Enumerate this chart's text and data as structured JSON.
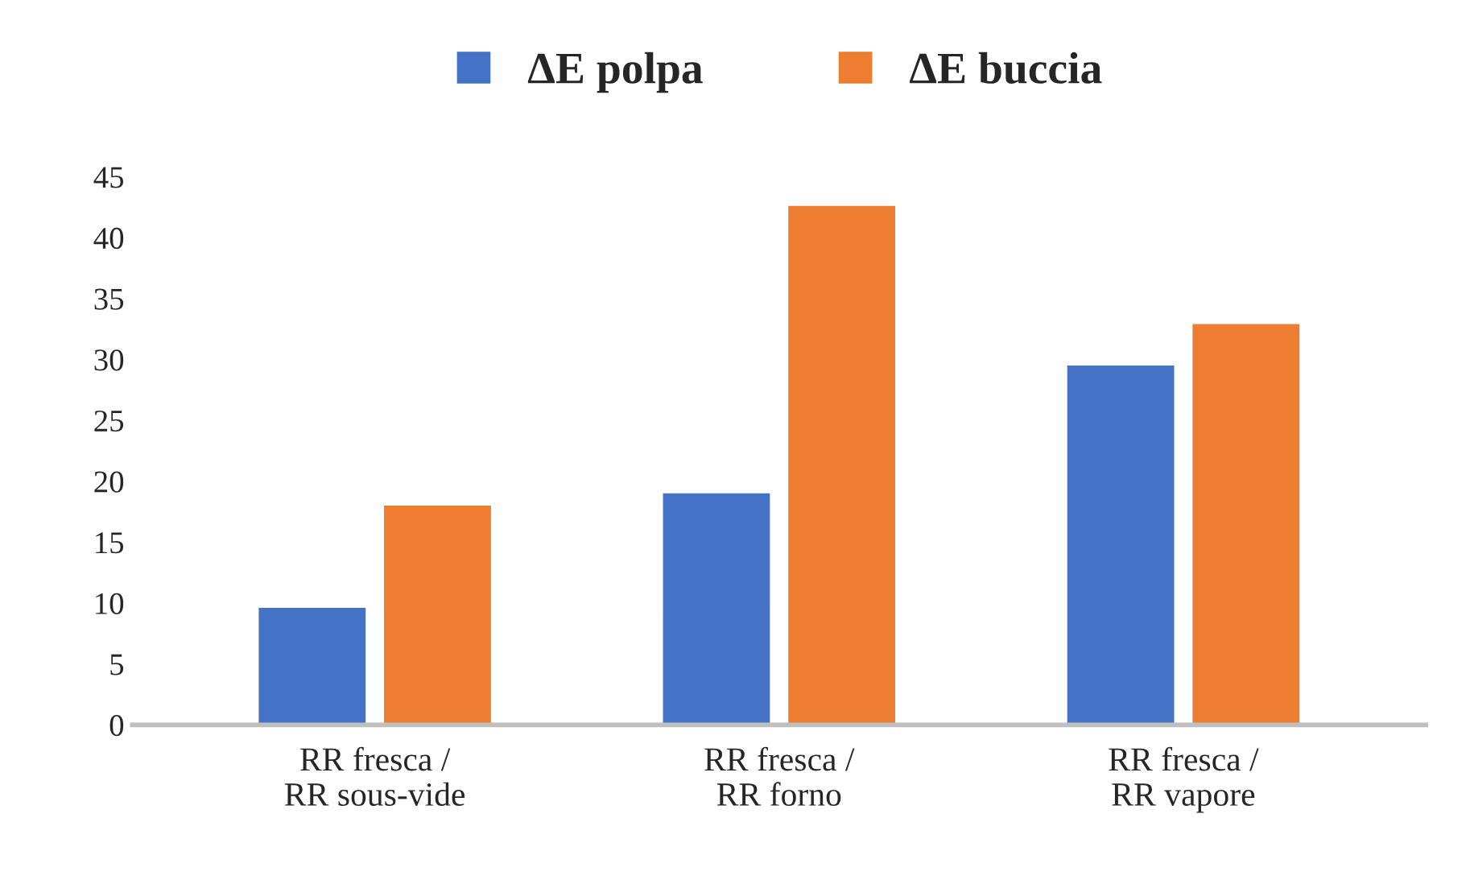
{
  "chart_data": {
    "type": "bar",
    "categories": [
      "RR fresca /\nRR sous-vide",
      "RR fresca /\nRR forno",
      "RR fresca /\nRR vapore"
    ],
    "series": [
      {
        "name": "ΔE polpa",
        "color": "#4472c4",
        "values": [
          9.7,
          19.1,
          29.6
        ]
      },
      {
        "name": "ΔE buccia",
        "color": "#ed7d31",
        "values": [
          18.1,
          42.7,
          33.0
        ]
      }
    ],
    "ylim": [
      0,
      45
    ],
    "yticks": [
      0,
      5,
      10,
      15,
      20,
      25,
      30,
      35,
      40,
      45
    ],
    "grid": false,
    "legend": "top"
  }
}
